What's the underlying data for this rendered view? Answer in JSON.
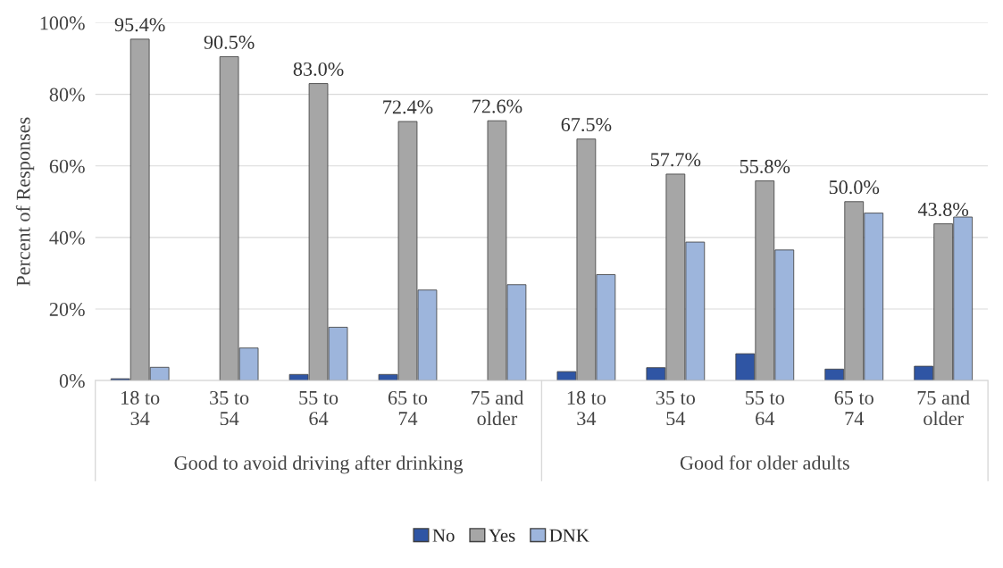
{
  "chart_data": {
    "type": "bar",
    "ylabel": "Percent of Responses",
    "categories": [
      "18 to\n34",
      "35 to\n54",
      "55 to\n64",
      "65 to\n74",
      "75 and\nolder",
      "18 to\n34",
      "35 to\n54",
      "55 to\n64",
      "65 to\n74",
      "75 and\nolder"
    ],
    "series": [
      {
        "name": "No",
        "color": "#2f55a4",
        "values": [
          0.5,
          null,
          1.7,
          1.7,
          null,
          2.5,
          3.6,
          7.5,
          3.2,
          4.0
        ]
      },
      {
        "name": "Yes",
        "color": "#a6a6a6",
        "values": [
          95.4,
          90.5,
          83.0,
          72.4,
          72.6,
          67.5,
          57.7,
          55.8,
          50.0,
          43.8
        ],
        "value_labels": [
          "95.4%",
          "90.5%",
          "83.0%",
          "72.4%",
          "72.6%",
          "67.5%",
          "57.7%",
          "55.8%",
          "50.0%",
          "43.8%"
        ]
      },
      {
        "name": "DNK",
        "color": "#9db5dc",
        "values": [
          3.7,
          9.1,
          14.9,
          25.3,
          26.8,
          29.6,
          38.7,
          36.5,
          46.8,
          45.7
        ]
      }
    ],
    "annotations": [
      "Good to avoid driving after drinking",
      "Good for older adults"
    ],
    "ylim": [
      0,
      100
    ],
    "yticks": [
      {
        "value": 0,
        "label": "0%"
      },
      {
        "value": 20,
        "label": "20%"
      },
      {
        "value": 40,
        "label": "40%"
      },
      {
        "value": 60,
        "label": "60%"
      },
      {
        "value": 80,
        "label": "80%"
      },
      {
        "value": 100,
        "label": "100%"
      }
    ],
    "grid": "y",
    "legend": "bottom"
  }
}
